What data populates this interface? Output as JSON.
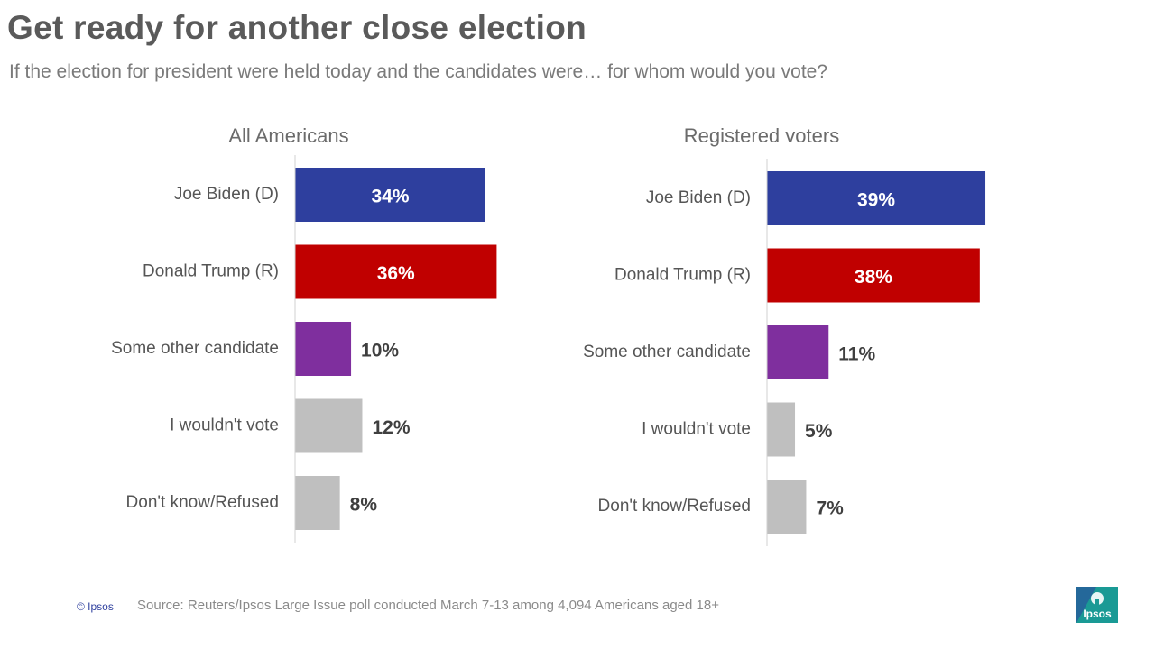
{
  "title": "Get ready for another close election",
  "subtitle": "If the election for president were held today and the candidates were… for whom would you vote?",
  "chart_data": [
    {
      "type": "bar",
      "orientation": "horizontal",
      "title": "All Americans",
      "categories": [
        "Joe Biden (D)",
        "Donald Trump (R)",
        "Some other candidate",
        "I wouldn't vote",
        "Don't know/Refused"
      ],
      "values": [
        34,
        36,
        10,
        12,
        8
      ],
      "labels": [
        "34%",
        "36%",
        "10%",
        "12%",
        "8%"
      ],
      "colors": [
        "#2e3f9e",
        "#c00000",
        "#7f2f9e",
        "#bfbfbf",
        "#bfbfbf"
      ],
      "label_inside": [
        true,
        true,
        false,
        false,
        false
      ],
      "xlim": [
        0,
        100
      ]
    },
    {
      "type": "bar",
      "orientation": "horizontal",
      "title": "Registered voters",
      "categories": [
        "Joe Biden (D)",
        "Donald Trump (R)",
        "Some other candidate",
        "I wouldn't vote",
        "Don't know/Refused"
      ],
      "values": [
        39,
        38,
        11,
        5,
        7
      ],
      "labels": [
        "39%",
        "38%",
        "11%",
        "5%",
        "7%"
      ],
      "colors": [
        "#2e3f9e",
        "#c00000",
        "#7f2f9e",
        "#bfbfbf",
        "#bfbfbf"
      ],
      "label_inside": [
        true,
        true,
        false,
        false,
        false
      ],
      "xlim": [
        0,
        100
      ]
    }
  ],
  "footer": {
    "copyright": "© Ipsos",
    "source": "Source: Reuters/Ipsos  Large Issue poll conducted March 7-13 among 4,094 Americans aged 18+"
  },
  "logo": {
    "text": "Ipsos",
    "color": "#1a9a95"
  }
}
